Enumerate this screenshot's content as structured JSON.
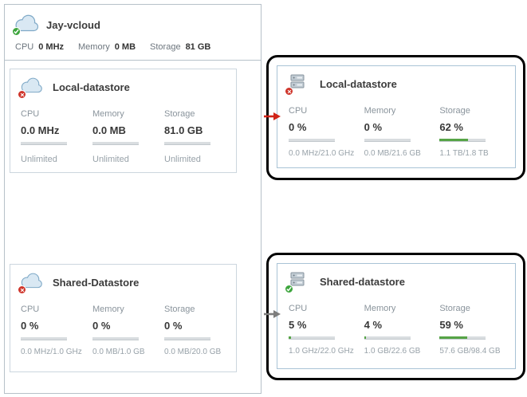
{
  "vcloud": {
    "title": "Jay-vcloud",
    "stats": [
      {
        "label": "CPU",
        "value": "0 MHz"
      },
      {
        "label": "Memory",
        "value": "0 MB"
      },
      {
        "label": "Storage",
        "value": "81 GB"
      }
    ]
  },
  "cards": {
    "local_left": {
      "title": "Local-datastore",
      "status": "error",
      "columns": [
        {
          "label": "CPU",
          "value": "0.0 MHz",
          "sub": "Unlimited"
        },
        {
          "label": "Memory",
          "value": "0.0 MB",
          "sub": "Unlimited"
        },
        {
          "label": "Storage",
          "value": "81.0 GB",
          "sub": "Unlimited"
        }
      ]
    },
    "local_right": {
      "title": "Local-datastore",
      "status": "error",
      "columns": [
        {
          "label": "CPU",
          "value": "0 %",
          "percent": 0,
          "sub": "0.0 MHz/21.0 GHz"
        },
        {
          "label": "Memory",
          "value": "0 %",
          "percent": 0,
          "sub": "0.0 MB/21.6 GB"
        },
        {
          "label": "Storage",
          "value": "62 %",
          "percent": 62,
          "sub": "1.1 TB/1.8 TB"
        }
      ]
    },
    "shared_left": {
      "title": "Shared-Datastore",
      "status": "error",
      "columns": [
        {
          "label": "CPU",
          "value": "0 %",
          "percent": 0,
          "sub": "0.0 MHz/1.0 GHz"
        },
        {
          "label": "Memory",
          "value": "0 %",
          "percent": 0,
          "sub": "0.0 MB/1.0 GB"
        },
        {
          "label": "Storage",
          "value": "0 %",
          "percent": 0,
          "sub": "0.0 MB/20.0 GB"
        }
      ]
    },
    "shared_right": {
      "title": "Shared-datastore",
      "status": "ok",
      "columns": [
        {
          "label": "CPU",
          "value": "5 %",
          "percent": 5,
          "sub": "1.0 GHz/22.0 GHz"
        },
        {
          "label": "Memory",
          "value": "4 %",
          "percent": 4,
          "sub": "1.0 GB/22.6 GB"
        },
        {
          "label": "Storage",
          "value": "59 %",
          "percent": 59,
          "sub": "57.6 GB/98.4 GB"
        }
      ]
    }
  },
  "colors": {
    "bar_fill_green": "#56a446",
    "bar_track_gray": "#d9dde0",
    "status_ok_green": "#3da53d",
    "status_error_red": "#cf352b",
    "callout_border": "#000000",
    "red_arrow": "#d02318",
    "gray_arrow": "#7d7d7d",
    "panel_border": "#b7c1c9",
    "card_border_left": "#ccd6de",
    "card_border_right": "#a9c3d6"
  }
}
